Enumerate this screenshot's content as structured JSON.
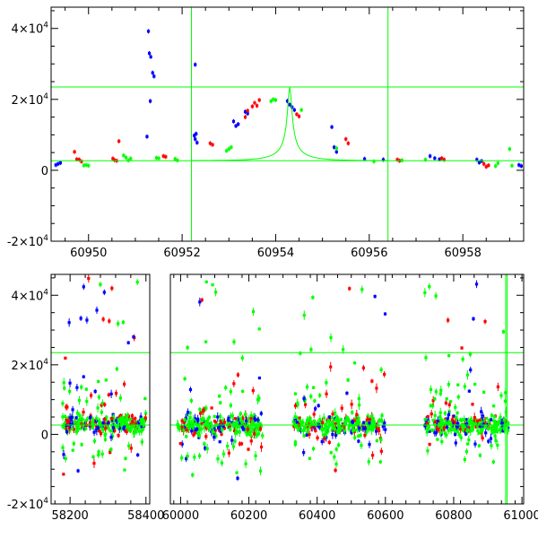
{
  "chart_data": [
    {
      "type": "scatter",
      "name": "zoom-panel",
      "xlim": [
        60949.2,
        60959.3
      ],
      "ylim": [
        -20000,
        46000
      ],
      "x_ticks": [
        {
          "value": 60950,
          "label": "60950"
        },
        {
          "value": 60952,
          "label": "60952"
        },
        {
          "value": 60954,
          "label": "60954"
        },
        {
          "value": 60956,
          "label": "60956"
        },
        {
          "value": 60958,
          "label": "60958"
        }
      ],
      "y_ticks": [
        {
          "value": 40000,
          "mant": "4×10",
          "exp": "4"
        },
        {
          "value": 20000,
          "mant": "2×10",
          "exp": "4"
        },
        {
          "value": 0,
          "mant": "0",
          "exp": ""
        },
        {
          "value": -20000,
          "mant": "-2×10",
          "exp": "4"
        }
      ],
      "baseline": 2700,
      "peak_level": 23500,
      "vlines": [
        60952.2,
        60956.4
      ],
      "model": {
        "t0": 60954.3,
        "u0": 0.055,
        "tE": 0.82
      },
      "series": [
        {
          "name": "blue",
          "color": "#0000ff",
          "points": [
            [
              60949.3,
              1500
            ],
            [
              60949.35,
              1800
            ],
            [
              60949.4,
              2100
            ],
            [
              60951.28,
              39200
            ],
            [
              60951.3,
              33000
            ],
            [
              60951.33,
              32000
            ],
            [
              60951.37,
              27500
            ],
            [
              60951.4,
              26500
            ],
            [
              60951.32,
              19500
            ],
            [
              60951.25,
              9500
            ],
            [
              60952.28,
              29800
            ],
            [
              60952.26,
              9800
            ],
            [
              60952.28,
              8800
            ],
            [
              60952.32,
              7800
            ],
            [
              60952.3,
              10300
            ],
            [
              60953.1,
              13800
            ],
            [
              60953.15,
              12500
            ],
            [
              60953.2,
              13000
            ],
            [
              60953.35,
              16500
            ],
            [
              60953.4,
              16000
            ],
            [
              60954.25,
              19500
            ],
            [
              60954.3,
              18500
            ],
            [
              60954.35,
              17800
            ],
            [
              60954.4,
              17000
            ],
            [
              60955.2,
              12200
            ],
            [
              60955.25,
              6500
            ],
            [
              60955.3,
              5200
            ],
            [
              60955.9,
              3200
            ],
            [
              60956.3,
              3000
            ],
            [
              60957.3,
              4000
            ],
            [
              60957.4,
              3400
            ],
            [
              60957.5,
              3100
            ],
            [
              60958.3,
              3000
            ],
            [
              60958.35,
              2200
            ],
            [
              60958.4,
              2600
            ],
            [
              60959.2,
              1500
            ],
            [
              60959.25,
              1200
            ]
          ]
        },
        {
          "name": "red",
          "color": "#ff0000",
          "points": [
            [
              60949.7,
              5200
            ],
            [
              60949.75,
              3100
            ],
            [
              60949.8,
              3000
            ],
            [
              60949.85,
              2500
            ],
            [
              60950.52,
              3300
            ],
            [
              60950.55,
              2900
            ],
            [
              60950.6,
              2700
            ],
            [
              60950.65,
              8200
            ],
            [
              60951.6,
              4000
            ],
            [
              60951.65,
              3800
            ],
            [
              60952.6,
              7600
            ],
            [
              60952.65,
              7200
            ],
            [
              60953.35,
              15000
            ],
            [
              60953.4,
              16800
            ],
            [
              60953.5,
              18000
            ],
            [
              60953.55,
              19000
            ],
            [
              60953.6,
              18200
            ],
            [
              60953.65,
              19800
            ],
            [
              60954.45,
              15800
            ],
            [
              60954.5,
              15200
            ],
            [
              60955.5,
              8800
            ],
            [
              60955.55,
              7600
            ],
            [
              60956.6,
              3000
            ],
            [
              60956.65,
              2700
            ],
            [
              60957.55,
              3400
            ],
            [
              60957.6,
              3000
            ],
            [
              60958.45,
              1800
            ],
            [
              60958.5,
              1000
            ],
            [
              60958.55,
              1400
            ]
          ]
        },
        {
          "name": "green",
          "color": "#00ff00",
          "points": [
            [
              60949.9,
              1400
            ],
            [
              60949.95,
              1500
            ],
            [
              60950.0,
              1300
            ],
            [
              60950.75,
              4200
            ],
            [
              60950.8,
              3600
            ],
            [
              60950.85,
              2800
            ],
            [
              60950.9,
              3300
            ],
            [
              60951.45,
              3500
            ],
            [
              60951.5,
              3400
            ],
            [
              60951.85,
              3200
            ],
            [
              60951.9,
              2800
            ],
            [
              60952.95,
              5500
            ],
            [
              60953.0,
              6000
            ],
            [
              60953.05,
              6500
            ],
            [
              60953.9,
              19500
            ],
            [
              60953.95,
              20000
            ],
            [
              60954.0,
              19800
            ],
            [
              60954.55,
              17000
            ],
            [
              60955.3,
              6200
            ],
            [
              60956.1,
              2500
            ],
            [
              60956.7,
              2800
            ],
            [
              60957.2,
              3000
            ],
            [
              60958.7,
              1200
            ],
            [
              60958.75,
              2000
            ],
            [
              60959.0,
              6000
            ],
            [
              60959.05,
              1300
            ]
          ]
        }
      ]
    },
    {
      "type": "scatter",
      "name": "full-season-panel",
      "ylim": [
        -20000,
        46000
      ],
      "segments": [
        {
          "name": "left",
          "xlim": [
            58150,
            58410
          ]
        },
        {
          "name": "right",
          "xlim": [
            59970,
            61005
          ]
        }
      ],
      "x_ticks": [
        {
          "value": 58200,
          "label": "58200",
          "segment": 0
        },
        {
          "value": 58400,
          "label": "58400",
          "segment": 0
        },
        {
          "value": 60000,
          "label": "60000",
          "segment": 1
        },
        {
          "value": 60200,
          "label": "60200",
          "segment": 1
        },
        {
          "value": 60400,
          "label": "60400",
          "segment": 1
        },
        {
          "value": 60600,
          "label": "60600",
          "segment": 1
        },
        {
          "value": 60800,
          "label": "60800",
          "segment": 1
        },
        {
          "value": 61000,
          "label": "61000",
          "segment": 1
        }
      ],
      "y_ticks": [
        {
          "value": 40000,
          "mant": "4×10",
          "exp": "4"
        },
        {
          "value": 20000,
          "mant": "2×10",
          "exp": "4"
        },
        {
          "value": 0,
          "mant": "0",
          "exp": ""
        },
        {
          "value": -20000,
          "mant": "-2×10",
          "exp": "4"
        }
      ],
      "baseline": 2700,
      "peak_level": 23500,
      "vlines": [
        60952.2,
        60956.4
      ],
      "clusters": [
        {
          "segment": 0,
          "range": [
            58180,
            58400
          ],
          "spread": 9000
        },
        {
          "segment": 1,
          "range": [
            59990,
            60240
          ],
          "spread": 10000
        },
        {
          "segment": 1,
          "range": [
            60330,
            60600
          ],
          "spread": 9500
        },
        {
          "segment": 1,
          "range": [
            60715,
            60960
          ],
          "spread": 8500
        }
      ],
      "series_colors": [
        "#00ff00",
        "#ff0000",
        "#0000ff"
      ]
    }
  ]
}
